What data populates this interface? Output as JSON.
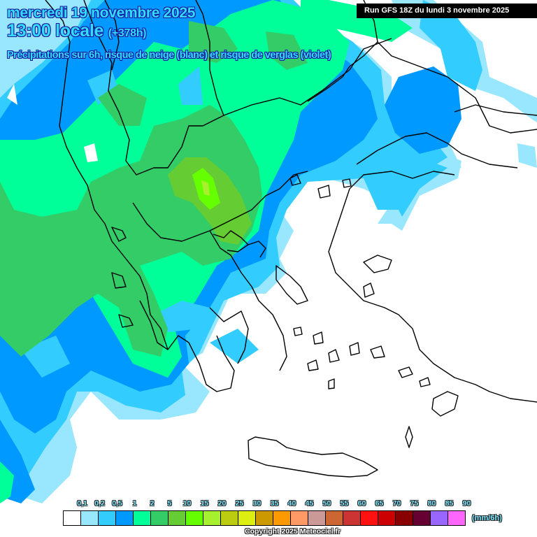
{
  "header": {
    "date": "mercredi 19 novembre 2025",
    "time": "13:00 locale",
    "lead": "(+378h)",
    "description": "Précipitations sur 6h, risque de neige (blanc) et risque de verglas (violet)"
  },
  "run_info": "Run GFS 18Z du lundi 3 novembre 2025",
  "legend": {
    "unit": "(mm/6h)",
    "labels": [
      "0,1",
      "0,2",
      "0,5",
      "1",
      "2",
      "5",
      "10",
      "15",
      "20",
      "25",
      "30",
      "35",
      "40",
      "45",
      "50",
      "55",
      "60",
      "65",
      "70",
      "75",
      "80",
      "85",
      "90"
    ],
    "colors": [
      "#ffffff",
      "#99e6ff",
      "#33ccff",
      "#0099ff",
      "#00ff99",
      "#33cc66",
      "#66cc33",
      "#66ff00",
      "#a6f02e",
      "#bbcc11",
      "#ddee11",
      "#cc9900",
      "#ff9900",
      "#ff9966",
      "#cc9999",
      "#cc6633",
      "#cc3333",
      "#ff1111",
      "#cc0000",
      "#880000",
      "#660033",
      "#9966ff",
      "#ff66ff"
    ]
  },
  "copyright": "Copyright 2025 Meteociel.fr",
  "map": {
    "region": "Balkans / Greece / Aegean / western Turkey",
    "field": "6h precipitation",
    "colors": {
      "white": "#ffffff",
      "p01": "#99e6ff",
      "p02": "#33ccff",
      "p05": "#0099ff",
      "p1": "#00ff99",
      "p2": "#33cc66",
      "p5": "#66cc33",
      "p10": "#66ff00",
      "border": "#000000"
    }
  }
}
